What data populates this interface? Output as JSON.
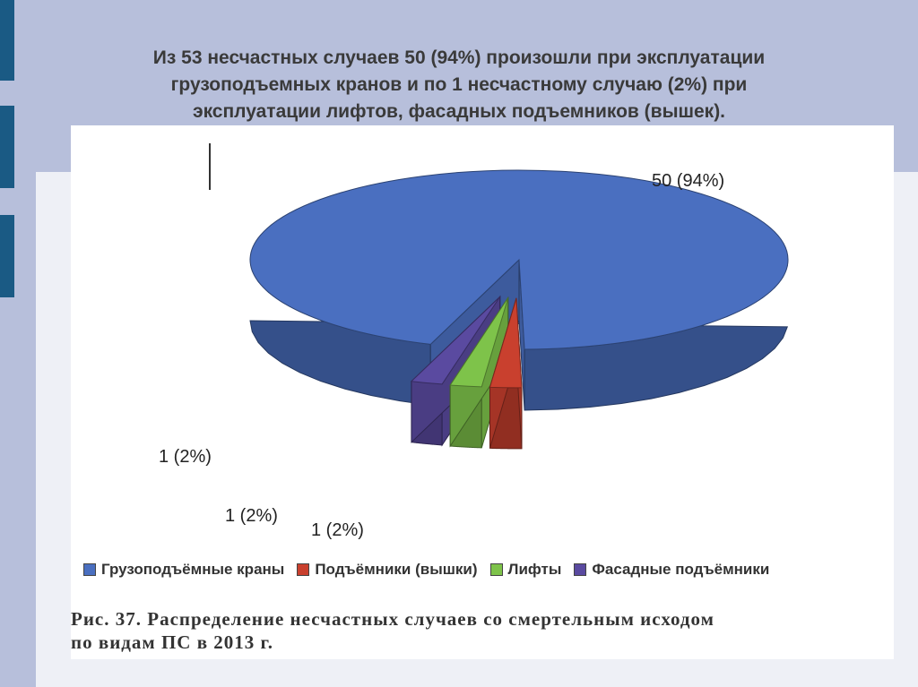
{
  "slide": {
    "title_lines": [
      "Из 53 несчастных случаев 50 (94%) произошли при эксплуатации",
      "грузоподъемных кранов и по 1 несчастному  случаю (2%) при",
      "эксплуатации лифтов, фасадных подъемников (вышек)."
    ]
  },
  "figure": {
    "caption_lines": [
      "Рис. 37. Распределение несчастных случаев со смертельным исходом",
      "по видам ПС в 2013 г."
    ]
  },
  "colors": {
    "cranes": "#4a6fc0",
    "lifts_towers": "#c9402e",
    "elevators": "#7ec34a",
    "facade_lifts": "#5a4aa0"
  },
  "chart_data": {
    "type": "pie",
    "labels": [
      "Грузоподъёмные краны",
      "Подъёмники (вышки)",
      "Лифты",
      "Фасадные подъёмники"
    ],
    "values": [
      50,
      1,
      1,
      1
    ],
    "data_labels": [
      "50 (94%)",
      "1 (2%)",
      "1 (2%)",
      "1 (2%)"
    ],
    "legend_position": "bottom",
    "exploded": [
      "Подъёмники (вышки)",
      "Лифты",
      "Фасадные подъёмники"
    ],
    "style": "3d"
  }
}
